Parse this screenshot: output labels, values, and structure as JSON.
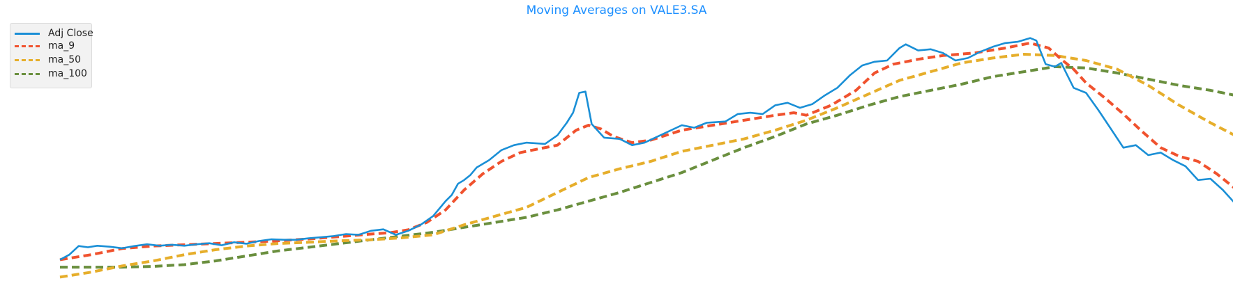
{
  "chart_data": {
    "type": "line",
    "title": "Moving Averages on VALE3.SA",
    "title_color": "#1e90ff",
    "xlabel": "",
    "ylabel": "",
    "grid": false,
    "axes_visible": false,
    "legend_placement": "top-left",
    "x_index_range": [
      0,
      362
    ],
    "ylim": [
      0,
      100
    ],
    "series": [
      {
        "name": "Adj Close",
        "color": "#1a8fd6",
        "style": "solid",
        "points": [
          [
            0,
            8.0
          ],
          [
            3,
            10.0
          ],
          [
            6,
            13.5
          ],
          [
            9,
            13.0
          ],
          [
            12,
            13.6
          ],
          [
            16,
            13.2
          ],
          [
            20,
            12.6
          ],
          [
            24,
            13.5
          ],
          [
            28,
            14.2
          ],
          [
            32,
            13.6
          ],
          [
            36,
            14.0
          ],
          [
            40,
            13.6
          ],
          [
            44,
            14.2
          ],
          [
            48,
            14.6
          ],
          [
            52,
            13.8
          ],
          [
            56,
            15.0
          ],
          [
            60,
            14.4
          ],
          [
            64,
            15.5
          ],
          [
            68,
            16.2
          ],
          [
            72,
            16.0
          ],
          [
            76,
            16.0
          ],
          [
            80,
            16.6
          ],
          [
            84,
            17.0
          ],
          [
            88,
            17.5
          ],
          [
            92,
            18.3
          ],
          [
            96,
            18.0
          ],
          [
            100,
            19.6
          ],
          [
            104,
            20.2
          ],
          [
            108,
            18.0
          ],
          [
            112,
            19.6
          ],
          [
            116,
            22.0
          ],
          [
            120,
            25.5
          ],
          [
            124,
            31.5
          ],
          [
            126,
            34.0
          ],
          [
            128,
            38.5
          ],
          [
            130,
            40.0
          ],
          [
            132,
            42.0
          ],
          [
            134,
            45.0
          ],
          [
            138,
            48.0
          ],
          [
            142,
            52.0
          ],
          [
            146,
            54.0
          ],
          [
            150,
            55.0
          ],
          [
            156,
            54.5
          ],
          [
            160,
            58.0
          ],
          [
            163,
            63.0
          ],
          [
            165,
            67.0
          ],
          [
            167,
            75.0
          ],
          [
            169,
            75.5
          ],
          [
            171,
            62.5
          ],
          [
            175,
            57.0
          ],
          [
            180,
            56.5
          ],
          [
            184,
            54.0
          ],
          [
            188,
            55.0
          ],
          [
            194,
            58.5
          ],
          [
            200,
            62.0
          ],
          [
            204,
            61.0
          ],
          [
            208,
            63.0
          ],
          [
            214,
            63.5
          ],
          [
            218,
            66.5
          ],
          [
            222,
            67.0
          ],
          [
            226,
            66.5
          ],
          [
            230,
            70.0
          ],
          [
            234,
            71.0
          ],
          [
            238,
            69.0
          ],
          [
            242,
            70.5
          ],
          [
            246,
            74.0
          ],
          [
            250,
            77.0
          ],
          [
            254,
            82.0
          ],
          [
            258,
            86.0
          ],
          [
            262,
            87.5
          ],
          [
            266,
            88.0
          ],
          [
            270,
            93.0
          ],
          [
            272,
            94.5
          ],
          [
            276,
            92.0
          ],
          [
            280,
            92.5
          ],
          [
            284,
            91.0
          ],
          [
            288,
            88.0
          ],
          [
            292,
            89.0
          ],
          [
            296,
            91.5
          ],
          [
            300,
            93.5
          ],
          [
            304,
            95.0
          ],
          [
            308,
            95.5
          ],
          [
            312,
            97.0
          ],
          [
            314,
            96.0
          ],
          [
            317,
            86.5
          ],
          [
            320,
            85.5
          ],
          [
            322,
            87.0
          ],
          [
            324,
            82.0
          ],
          [
            326,
            77.0
          ],
          [
            330,
            75.0
          ],
          [
            334,
            68.0
          ],
          [
            338,
            60.5
          ],
          [
            342,
            53.0
          ],
          [
            346,
            54.0
          ],
          [
            350,
            50.0
          ],
          [
            354,
            51.0
          ],
          [
            358,
            48.0
          ],
          [
            362,
            45.5
          ],
          [
            366,
            40.0
          ],
          [
            370,
            40.5
          ],
          [
            374,
            36.0
          ],
          [
            378,
            30.5
          ],
          [
            382,
            28.0
          ],
          [
            386,
            31.0
          ],
          [
            389,
            32.5
          ],
          [
            392,
            28.0
          ],
          [
            395,
            26.0
          ],
          [
            398,
            24.5
          ],
          [
            401,
            26.5
          ],
          [
            404,
            22.0
          ],
          [
            407,
            29.0
          ],
          [
            410,
            32.5
          ],
          [
            413,
            35.5
          ],
          [
            416,
            40.5
          ],
          [
            420,
            43.0
          ],
          [
            424,
            47.5
          ],
          [
            428,
            50.5
          ],
          [
            432,
            53.5
          ],
          [
            436,
            54.5
          ],
          [
            440,
            52.5
          ],
          [
            444,
            53.5
          ],
          [
            446,
            51.0
          ]
        ]
      },
      {
        "name": "ma_9",
        "color": "#f0522e",
        "style": "dashed",
        "points": [
          [
            0,
            8.0
          ],
          [
            10,
            10.0
          ],
          [
            20,
            12.5
          ],
          [
            30,
            13.5
          ],
          [
            40,
            14.0
          ],
          [
            50,
            14.5
          ],
          [
            60,
            15.0
          ],
          [
            70,
            15.6
          ],
          [
            80,
            16.3
          ],
          [
            90,
            17.3
          ],
          [
            100,
            18.3
          ],
          [
            106,
            18.8
          ],
          [
            112,
            20.0
          ],
          [
            118,
            23.0
          ],
          [
            124,
            28.0
          ],
          [
            130,
            36.0
          ],
          [
            136,
            42.5
          ],
          [
            142,
            47.5
          ],
          [
            148,
            51.0
          ],
          [
            154,
            52.5
          ],
          [
            160,
            54.0
          ],
          [
            166,
            60.0
          ],
          [
            170,
            62.0
          ],
          [
            174,
            60.5
          ],
          [
            178,
            57.5
          ],
          [
            184,
            55.0
          ],
          [
            190,
            56.0
          ],
          [
            200,
            60.0
          ],
          [
            210,
            62.0
          ],
          [
            220,
            64.0
          ],
          [
            230,
            66.0
          ],
          [
            236,
            67.0
          ],
          [
            240,
            66.0
          ],
          [
            248,
            70.0
          ],
          [
            256,
            76.0
          ],
          [
            262,
            83.0
          ],
          [
            268,
            86.5
          ],
          [
            276,
            88.5
          ],
          [
            284,
            90.0
          ],
          [
            294,
            91.0
          ],
          [
            304,
            93.0
          ],
          [
            312,
            95.0
          ],
          [
            318,
            93.0
          ],
          [
            322,
            88.5
          ],
          [
            326,
            84.5
          ],
          [
            330,
            79.0
          ],
          [
            336,
            73.0
          ],
          [
            342,
            66.5
          ],
          [
            348,
            59.5
          ],
          [
            354,
            53.0
          ],
          [
            360,
            49.5
          ],
          [
            366,
            47.5
          ],
          [
            372,
            42.5
          ],
          [
            378,
            36.5
          ],
          [
            384,
            32.0
          ],
          [
            390,
            29.0
          ],
          [
            396,
            26.5
          ],
          [
            402,
            25.5
          ],
          [
            408,
            27.5
          ],
          [
            414,
            31.0
          ],
          [
            420,
            35.5
          ],
          [
            426,
            40.5
          ],
          [
            432,
            45.0
          ],
          [
            438,
            49.5
          ],
          [
            442,
            51.5
          ],
          [
            446,
            52.0
          ]
        ]
      },
      {
        "name": "ma_50",
        "color": "#e6ae2b",
        "style": "dashed",
        "points": [
          [
            0,
            1.0
          ],
          [
            10,
            3.0
          ],
          [
            20,
            5.5
          ],
          [
            30,
            7.5
          ],
          [
            40,
            10.0
          ],
          [
            50,
            12.0
          ],
          [
            60,
            13.5
          ],
          [
            70,
            14.5
          ],
          [
            80,
            15.0
          ],
          [
            90,
            15.6
          ],
          [
            100,
            16.0
          ],
          [
            110,
            16.8
          ],
          [
            120,
            18.0
          ],
          [
            130,
            22.0
          ],
          [
            140,
            25.5
          ],
          [
            150,
            29.0
          ],
          [
            160,
            35.0
          ],
          [
            170,
            41.0
          ],
          [
            180,
            44.5
          ],
          [
            190,
            47.5
          ],
          [
            200,
            51.5
          ],
          [
            210,
            54.0
          ],
          [
            220,
            56.5
          ],
          [
            230,
            60.0
          ],
          [
            240,
            64.0
          ],
          [
            250,
            69.0
          ],
          [
            260,
            74.5
          ],
          [
            270,
            80.0
          ],
          [
            280,
            83.5
          ],
          [
            290,
            87.0
          ],
          [
            300,
            89.0
          ],
          [
            310,
            90.5
          ],
          [
            320,
            90.0
          ],
          [
            330,
            88.0
          ],
          [
            340,
            84.5
          ],
          [
            350,
            78.0
          ],
          [
            360,
            70.0
          ],
          [
            370,
            63.0
          ],
          [
            380,
            56.5
          ],
          [
            390,
            50.5
          ],
          [
            400,
            45.5
          ],
          [
            410,
            43.0
          ],
          [
            420,
            42.0
          ],
          [
            430,
            41.5
          ],
          [
            438,
            41.5
          ],
          [
            446,
            41.5
          ]
        ]
      },
      {
        "name": "ma_100",
        "color": "#6a8f3e",
        "style": "dashed",
        "points": [
          [
            0,
            5.0
          ],
          [
            10,
            5.0
          ],
          [
            20,
            5.0
          ],
          [
            30,
            5.3
          ],
          [
            40,
            6.0
          ],
          [
            50,
            7.5
          ],
          [
            60,
            9.5
          ],
          [
            70,
            11.5
          ],
          [
            80,
            13.0
          ],
          [
            90,
            14.5
          ],
          [
            100,
            16.0
          ],
          [
            110,
            17.5
          ],
          [
            120,
            19.0
          ],
          [
            130,
            21.0
          ],
          [
            140,
            23.0
          ],
          [
            150,
            25.0
          ],
          [
            160,
            28.0
          ],
          [
            170,
            31.5
          ],
          [
            180,
            35.0
          ],
          [
            190,
            39.0
          ],
          [
            200,
            43.0
          ],
          [
            210,
            48.0
          ],
          [
            220,
            53.0
          ],
          [
            230,
            57.5
          ],
          [
            240,
            62.5
          ],
          [
            250,
            66.0
          ],
          [
            260,
            70.0
          ],
          [
            270,
            73.5
          ],
          [
            280,
            76.0
          ],
          [
            290,
            78.5
          ],
          [
            300,
            81.5
          ],
          [
            310,
            83.5
          ],
          [
            320,
            85.5
          ],
          [
            330,
            85.0
          ],
          [
            340,
            83.0
          ],
          [
            350,
            80.5
          ],
          [
            360,
            78.0
          ],
          [
            370,
            76.0
          ],
          [
            380,
            73.5
          ],
          [
            390,
            71.0
          ],
          [
            400,
            68.0
          ],
          [
            410,
            65.0
          ],
          [
            420,
            62.0
          ],
          [
            430,
            59.5
          ],
          [
            438,
            57.5
          ],
          [
            446,
            56.5
          ]
        ]
      }
    ]
  }
}
